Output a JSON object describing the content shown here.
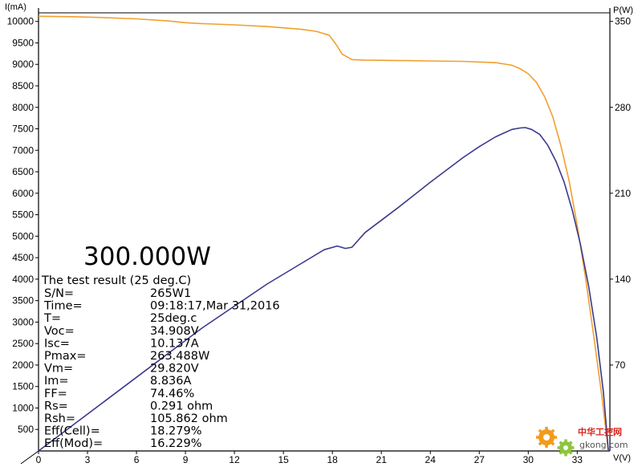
{
  "chart_data": {
    "type": "line",
    "title": "",
    "xlabel": "V(V)",
    "ylabel_left": "I(mA)",
    "ylabel_right": "P(W)",
    "xlim": [
      0,
      35
    ],
    "ylim_left": [
      0,
      10200
    ],
    "ylim_right": [
      0,
      357
    ],
    "x_ticks": [
      0,
      3,
      6,
      9,
      12,
      15,
      18,
      21,
      24,
      27,
      30,
      33
    ],
    "y_left_ticks": [
      500,
      1000,
      1500,
      2000,
      2500,
      3000,
      3500,
      4000,
      4500,
      5000,
      5500,
      6000,
      6500,
      7000,
      7500,
      8000,
      8500,
      9000,
      9500,
      10000
    ],
    "y_right_ticks": [
      70,
      140,
      210,
      280,
      350
    ],
    "grid": false,
    "series": [
      {
        "name": "",
        "axis": "left",
        "color": "#f0a030",
        "x": [
          0,
          2,
          4,
          6,
          8,
          9,
          10,
          12,
          14,
          16,
          17,
          17.8,
          18.2,
          18.6,
          19.2,
          20,
          22,
          24,
          26,
          28,
          29,
          29.5,
          30,
          30.5,
          31,
          31.5,
          32,
          32.5,
          33,
          33.5,
          34,
          34.5,
          34.908
        ],
        "values": [
          10120,
          10110,
          10090,
          10060,
          10010,
          9970,
          9950,
          9920,
          9880,
          9820,
          9770,
          9680,
          9480,
          9240,
          9110,
          9100,
          9090,
          9080,
          9070,
          9040,
          8980,
          8900,
          8780,
          8580,
          8250,
          7780,
          7100,
          6300,
          5250,
          4050,
          2700,
          1300,
          0
        ]
      },
      {
        "name": "",
        "axis": "right",
        "color": "#3a3a8c",
        "x": [
          0,
          2,
          4,
          6,
          8,
          10,
          12,
          14,
          16,
          17.5,
          18.3,
          18.8,
          19.2,
          20,
          22,
          24,
          26,
          27,
          28,
          29,
          29.5,
          29.82,
          30.2,
          30.7,
          31.2,
          31.7,
          32.2,
          32.7,
          33.2,
          33.7,
          34.2,
          34.6,
          34.908
        ],
        "values": [
          0,
          20,
          40,
          60,
          80,
          100,
          118,
          136,
          152,
          164,
          167,
          165,
          166,
          178,
          198,
          219,
          239,
          248,
          256,
          262,
          263.2,
          263.488,
          262,
          258,
          249,
          236,
          219,
          196,
          168,
          134,
          92,
          48,
          0
        ]
      }
    ],
    "annotations": {
      "power_readout": "300.000W",
      "result_title": "The test result (25 deg.C)",
      "results": [
        {
          "label": "S/N=",
          "value": "265W1"
        },
        {
          "label": "Time=",
          "value": "09:18:17,Mar 31,2016"
        },
        {
          "label": "T=",
          "value": "25deg.c"
        },
        {
          "label": "Voc=",
          "value": "34.908V"
        },
        {
          "label": "Isc=",
          "value": "10.137A"
        },
        {
          "label": "Pmax=",
          "value": "263.488W"
        },
        {
          "label": "Vm=",
          "value": "29.820V"
        },
        {
          "label": "Im=",
          "value": "8.836A"
        },
        {
          "label": "FF=",
          "value": "74.46%"
        },
        {
          "label": "Rs=",
          "value": "0.291 ohm"
        },
        {
          "label": "Rsh=",
          "value": "105.862 ohm"
        },
        {
          "label": "Eff(Cell)=",
          "value": "18.279%"
        },
        {
          "label": "Eff(Mod)=",
          "value": "16.229%"
        }
      ]
    }
  },
  "watermark": {
    "cn_text": "中华工控网",
    "domain": "gkong.com",
    "colors": {
      "gear_orange": "#f29b1d",
      "gear_green": "#8cc63f",
      "text_red": "#d9251c"
    }
  }
}
